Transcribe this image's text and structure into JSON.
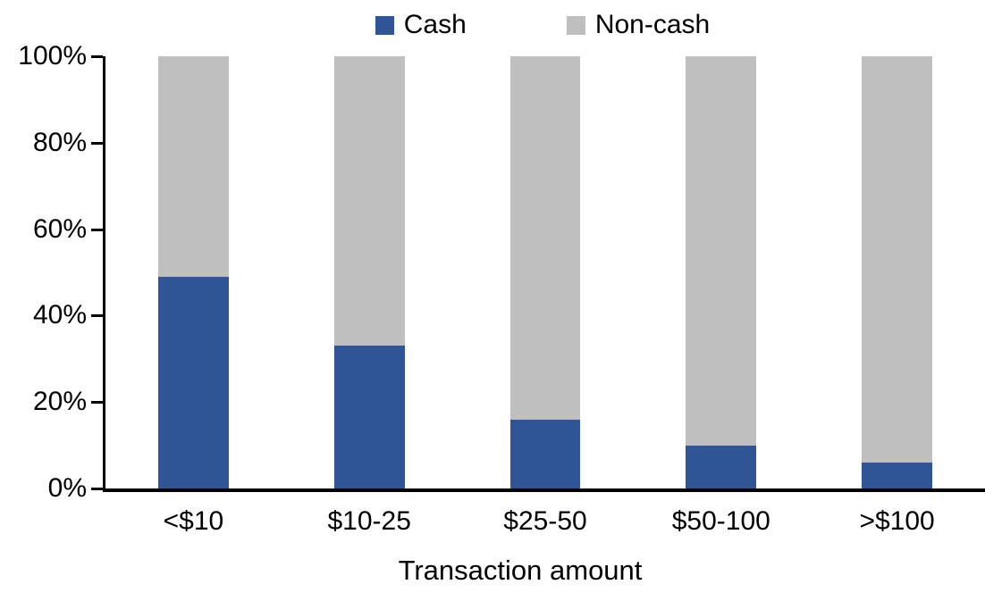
{
  "chart_data": {
    "type": "bar",
    "stacked": true,
    "stacked_mode": "percent",
    "title": "",
    "xlabel": "Transaction amount",
    "ylabel": "",
    "categories": [
      "<$10",
      "$10-25",
      "$25-50",
      "$50-100",
      ">$100"
    ],
    "series": [
      {
        "name": "Cash",
        "color": "#2F5597",
        "values": [
          49,
          33,
          16,
          10,
          6
        ]
      },
      {
        "name": "Non-cash",
        "color": "#BFBFBF",
        "values": [
          51,
          67,
          84,
          90,
          94
        ]
      }
    ],
    "y_ticks": [
      "0%",
      "20%",
      "40%",
      "60%",
      "80%",
      "100%"
    ],
    "ylim": [
      0,
      100
    ],
    "grid": false,
    "legend_position": "top-center"
  },
  "colors": {
    "axis": "#000000",
    "text": "#000000",
    "background": "#FFFFFF"
  }
}
